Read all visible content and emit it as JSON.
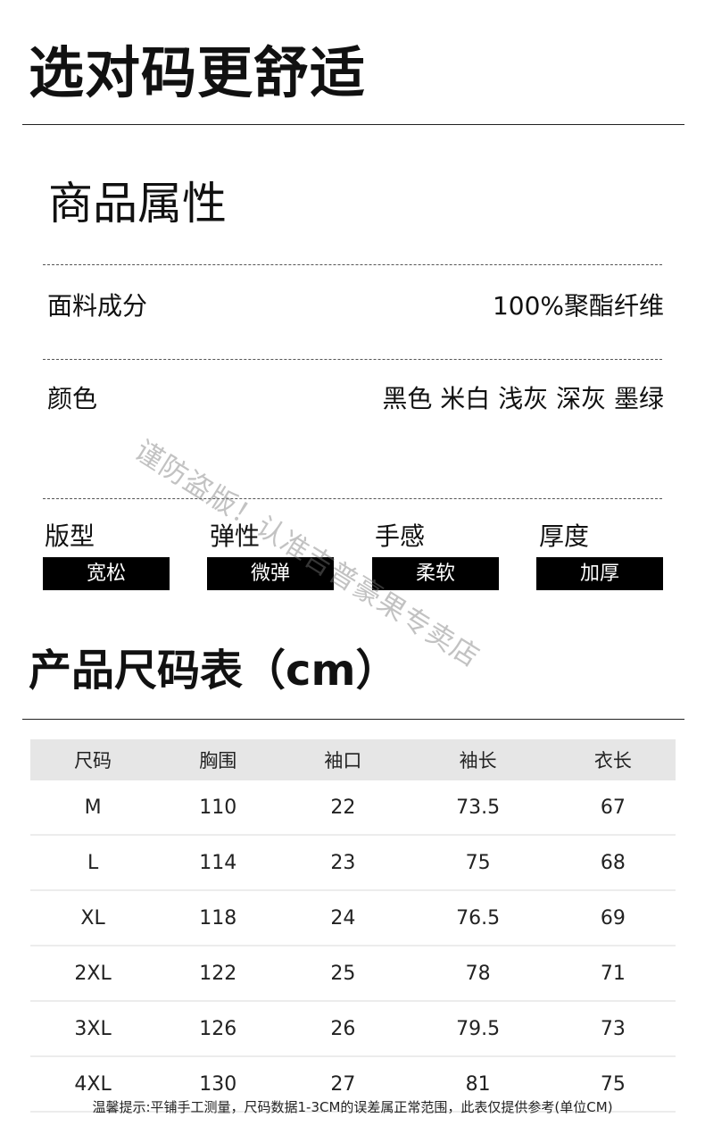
{
  "header": {
    "title": "选对码更舒适"
  },
  "attributes": {
    "title": "商品属性",
    "fabric": {
      "label": "面料成分",
      "value": "100%聚酯纤维"
    },
    "color": {
      "label": "颜色",
      "value": "黑色 米白 浅灰 深灰 墨绿"
    },
    "tags": [
      {
        "label": "版型",
        "value": "宽松"
      },
      {
        "label": "弹性",
        "value": "微弹"
      },
      {
        "label": "手感",
        "value": "柔软"
      },
      {
        "label": "厚度",
        "value": "加厚"
      }
    ]
  },
  "size_chart": {
    "title": "产品尺码表（cm）",
    "columns": [
      "尺码",
      "胸围",
      "袖口",
      "袖长",
      "衣长"
    ],
    "rows": [
      [
        "M",
        "110",
        "22",
        "73.5",
        "67"
      ],
      [
        "L",
        "114",
        "23",
        "75",
        "68"
      ],
      [
        "XL",
        "118",
        "24",
        "76.5",
        "69"
      ],
      [
        "2XL",
        "122",
        "25",
        "78",
        "71"
      ],
      [
        "3XL",
        "126",
        "26",
        "79.5",
        "73"
      ],
      [
        "4XL",
        "130",
        "27",
        "81",
        "75"
      ]
    ],
    "note": "温馨提示:平铺手工测量，尺码数据1-3CM的误差属正常范围，此表仅提供参考(单位CM)"
  },
  "watermark": "谨防盗版！认准吉普豪果专卖店"
}
